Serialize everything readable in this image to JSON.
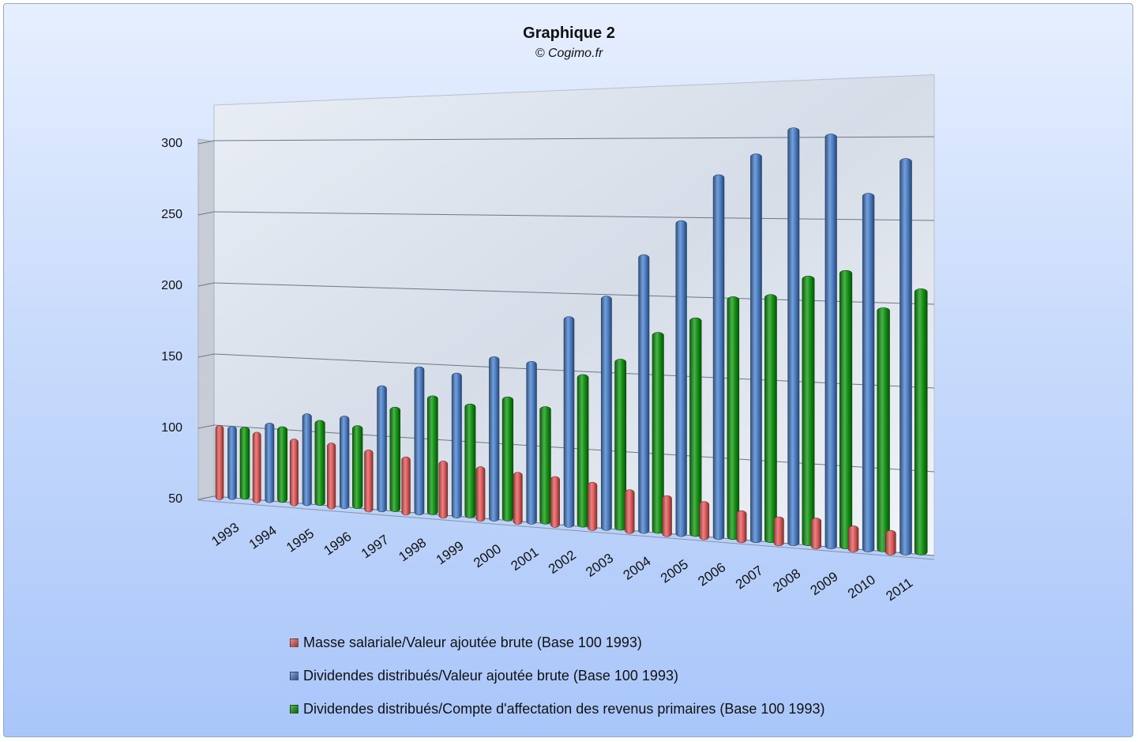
{
  "chart_data": {
    "type": "bar",
    "title": "Graphique 2",
    "subtitle": "© Cogimo.fr",
    "xlabel": "",
    "ylabel": "",
    "ylim": [
      50,
      300
    ],
    "yticks": [
      50,
      100,
      150,
      200,
      250,
      300
    ],
    "grid": true,
    "legend_position": "bottom",
    "categories": [
      "1993",
      "1994",
      "1995",
      "1996",
      "1997",
      "1998",
      "1999",
      "2000",
      "2001",
      "2002",
      "2003",
      "2004",
      "2005",
      "2006",
      "2007",
      "2008",
      "2009",
      "2010",
      "2011"
    ],
    "series": [
      {
        "name": "Masse salariale/Valeur ajoutée brute (Base 100 1993)",
        "color": "#e05a5a",
        "values": [
          100,
          97,
          94,
          93,
          90,
          87,
          86,
          84,
          82,
          81,
          79,
          76,
          74,
          72,
          68,
          66,
          67,
          64,
          63
        ]
      },
      {
        "name": "Dividendes distribués/Valeur ajoutée brute (Base 100 1993)",
        "color": "#4a7fc8",
        "values": [
          100,
          104,
          112,
          112,
          134,
          148,
          145,
          157,
          155,
          185,
          199,
          226,
          248,
          277,
          290,
          306,
          302,
          266,
          287
        ]
      },
      {
        "name": "Dividendes distribués/Compte d'affectation des revenus primaires (Base 100 1993)",
        "color": "#139413",
        "values": [
          100,
          102,
          108,
          106,
          120,
          129,
          125,
          131,
          126,
          148,
          159,
          177,
          187,
          201,
          203,
          215,
          219,
          197,
          209
        ]
      }
    ]
  }
}
